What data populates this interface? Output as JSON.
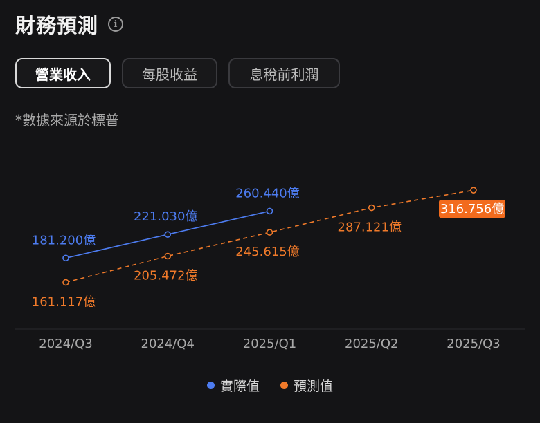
{
  "header": {
    "title": "財務預測",
    "info_icon": "info-icon"
  },
  "tabs": [
    {
      "label": "營業收入",
      "active": true
    },
    {
      "label": "每股收益",
      "active": false
    },
    {
      "label": "息稅前利潤",
      "active": false
    }
  ],
  "source_note": "*數據來源於標普",
  "colors": {
    "actual": "#4d7cf0",
    "forecast": "#f07a2a",
    "highlight_bg": "#f26b1d"
  },
  "chart_data": {
    "type": "line",
    "categories": [
      "2024/Q3",
      "2024/Q4",
      "2025/Q1",
      "2025/Q2",
      "2025/Q3"
    ],
    "series": [
      {
        "name": "實際值",
        "values": [
          181.2,
          221.03,
          260.44,
          null,
          null
        ],
        "labels": [
          "181.200億",
          "221.030億",
          "260.440億",
          "",
          ""
        ]
      },
      {
        "name": "預測值",
        "values": [
          161.117,
          205.472,
          245.615,
          287.121,
          316.756
        ],
        "labels": [
          "161.117億",
          "205.472億",
          "245.615億",
          "287.121億",
          "316.756億"
        ]
      }
    ],
    "unit": "億",
    "legend_position": "bottom-center"
  }
}
